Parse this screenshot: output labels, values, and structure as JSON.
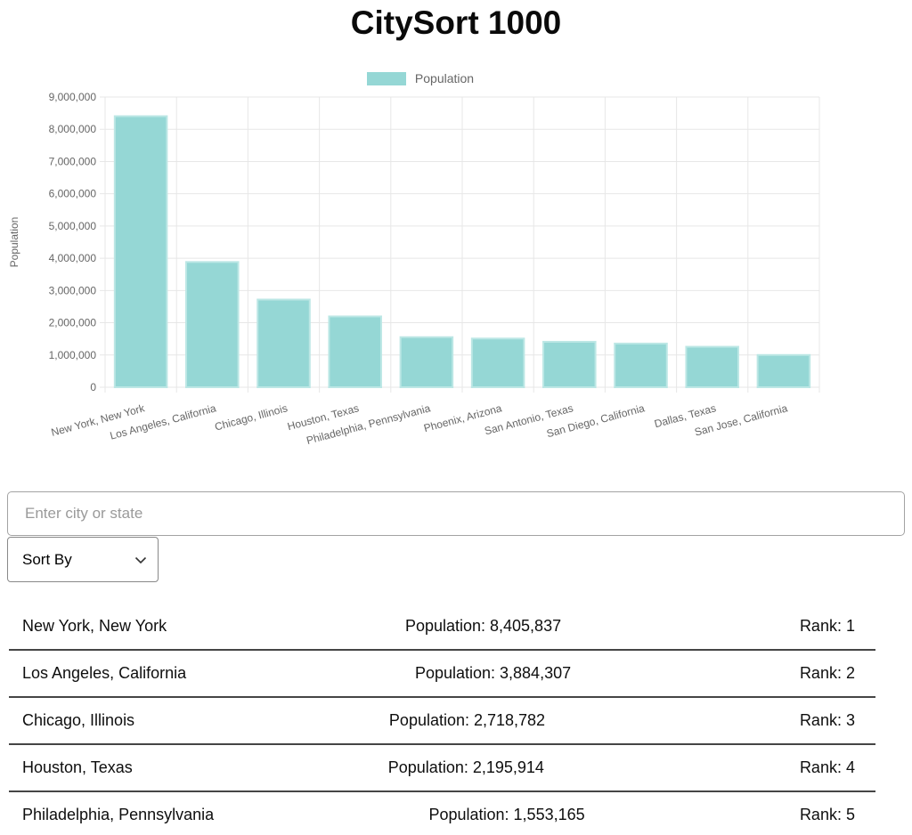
{
  "app": {
    "title": "CitySort 1000"
  },
  "chart_data": {
    "type": "bar",
    "title": "",
    "legend": {
      "label": "Population",
      "position": "top"
    },
    "xlabel": "",
    "ylabel": "Population",
    "ylim": [
      0,
      9000000
    ],
    "ytick_step": 1000000,
    "grid": true,
    "categories": [
      "New York, New York",
      "Los Angeles, California",
      "Chicago, Illinois",
      "Houston, Texas",
      "Philadelphia, Pennsylvania",
      "Phoenix, Arizona",
      "San Antonio, Texas",
      "San Diego, California",
      "Dallas, Texas",
      "San Jose, California"
    ],
    "values": [
      8405837,
      3884307,
      2718782,
      2195914,
      1553165,
      1510000,
      1410000,
      1355000,
      1255000,
      1000000
    ],
    "colors": {
      "bar": "#95d7d5",
      "bar_border": "#bce7e5",
      "grid": "#e7e7e7",
      "axis_text": "#666666"
    }
  },
  "search": {
    "placeholder": "Enter city or state",
    "value": ""
  },
  "sort": {
    "label": "Sort By"
  },
  "list": {
    "rows": [
      {
        "city": "New York, New York",
        "population_label": "Population: 8,405,837",
        "rank_label": "Rank: 1"
      },
      {
        "city": "Los Angeles, California",
        "population_label": "Population: 3,884,307",
        "rank_label": "Rank: 2"
      },
      {
        "city": "Chicago, Illinois",
        "population_label": "Population: 2,718,782",
        "rank_label": "Rank: 3"
      },
      {
        "city": "Houston, Texas",
        "population_label": "Population: 2,195,914",
        "rank_label": "Rank: 4"
      },
      {
        "city": "Philadelphia, Pennsylvania",
        "population_label": "Population: 1,553,165",
        "rank_label": "Rank: 5"
      }
    ]
  }
}
